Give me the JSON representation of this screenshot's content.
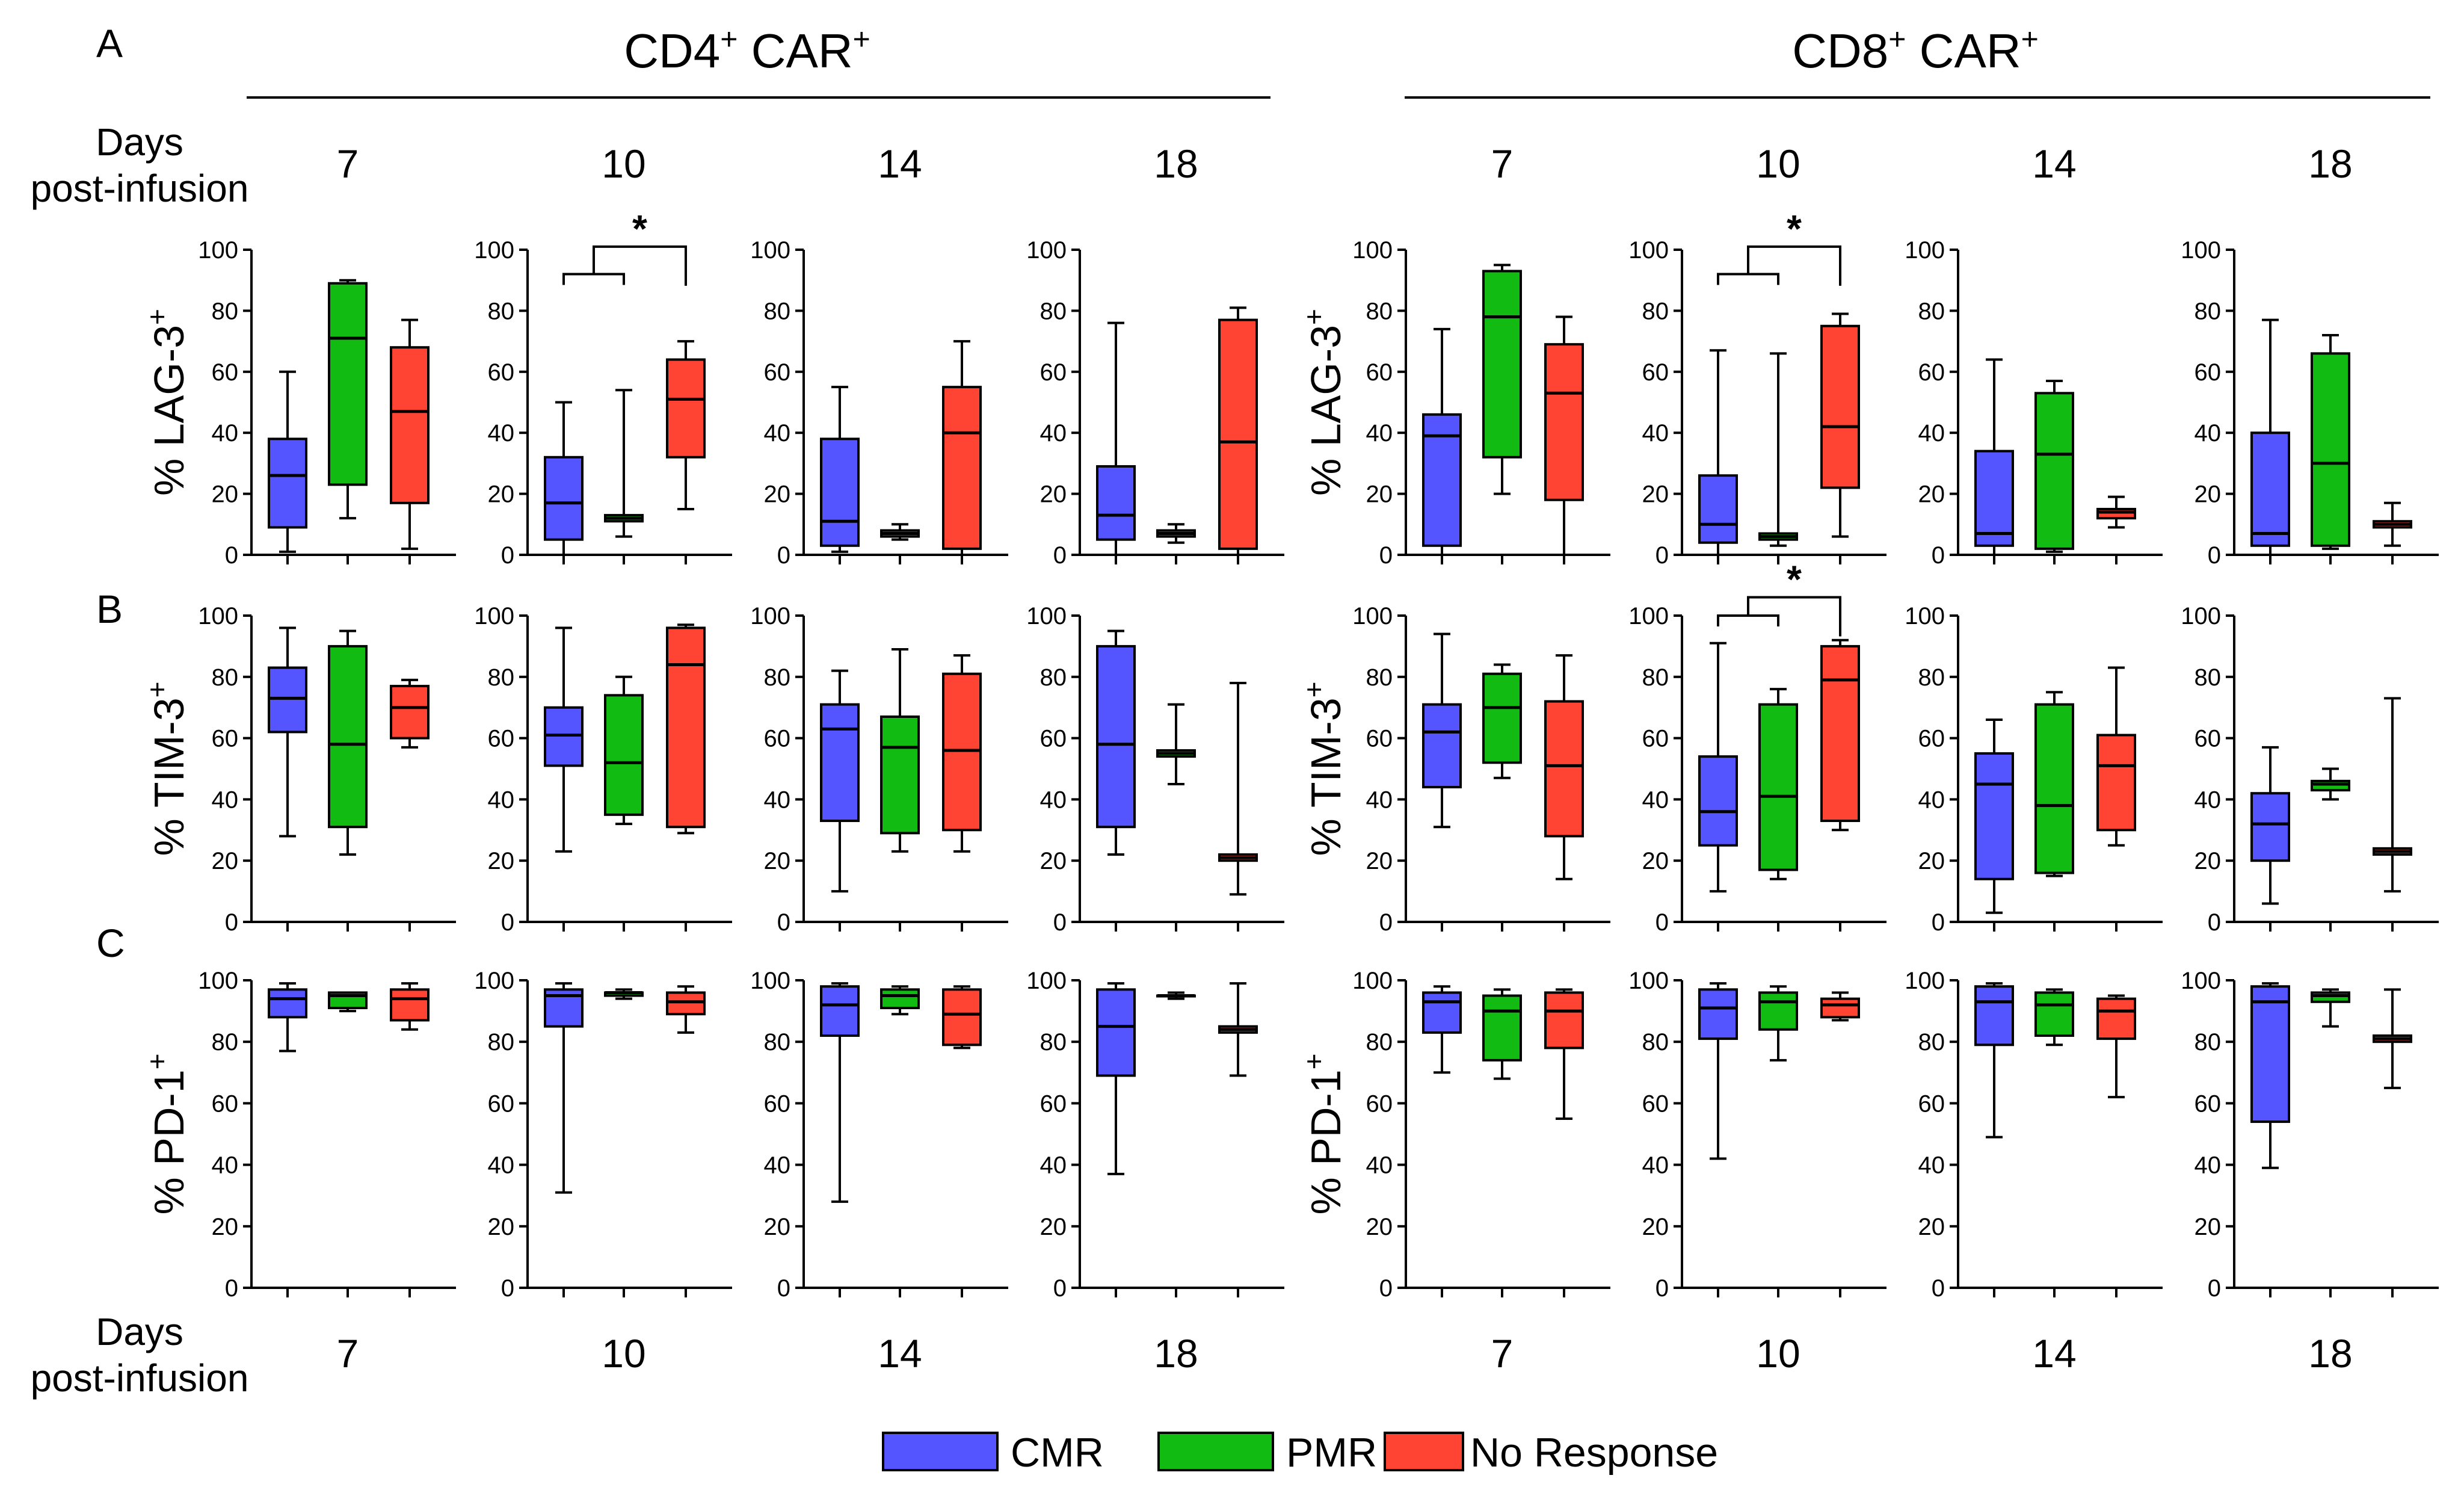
{
  "figure": {
    "panel_letters": [
      "A",
      "B",
      "C"
    ],
    "group_titles": [
      {
        "base": "CD4",
        "sup1": "+",
        "mid": " CAR",
        "sup2": "+"
      },
      {
        "base": "CD8",
        "sup1": "+",
        "mid": " CAR",
        "sup2": "+"
      }
    ],
    "days_label_line1": "Days",
    "days_label_line2": "post-infusion",
    "days": [
      "7",
      "10",
      "14",
      "18"
    ],
    "row_ylabels": [
      {
        "base": "% LAG-3",
        "sup": "+"
      },
      {
        "base": "% TIM-3",
        "sup": "+"
      },
      {
        "base": "% PD-1",
        "sup": "+"
      }
    ],
    "significance_marker": "*",
    "legend": [
      {
        "label": "CMR",
        "color": "#5555ff"
      },
      {
        "label": "PMR",
        "color": "#11bb11"
      },
      {
        "label": "No Response",
        "color": "#ff4433"
      }
    ]
  },
  "chart_data": {
    "type": "box",
    "ylim": [
      0,
      100
    ],
    "yticks": [
      0,
      20,
      40,
      60,
      80,
      100
    ],
    "groups": [
      "CMR",
      "PMR",
      "No Response"
    ],
    "colors": [
      "#5555ff",
      "#11bb11",
      "#ff4433"
    ],
    "panels": [
      {
        "row": "LAG-3",
        "cell": "CD4",
        "day": "7",
        "boxes": [
          [
            1,
            9,
            26,
            38,
            60
          ],
          [
            12,
            23,
            71,
            89,
            90
          ],
          [
            2,
            17,
            47,
            68,
            77
          ]
        ],
        "sig": null
      },
      {
        "row": "LAG-3",
        "cell": "CD4",
        "day": "10",
        "boxes": [
          [
            0,
            5,
            17,
            32,
            50
          ],
          [
            6,
            11,
            12,
            13,
            54
          ],
          [
            15,
            32,
            51,
            64,
            70
          ]
        ],
        "sig": "*"
      },
      {
        "row": "LAG-3",
        "cell": "CD4",
        "day": "14",
        "boxes": [
          [
            1,
            3,
            11,
            38,
            55
          ],
          [
            5,
            6,
            7,
            8,
            10
          ],
          [
            0,
            2,
            40,
            55,
            70
          ]
        ],
        "sig": null
      },
      {
        "row": "LAG-3",
        "cell": "CD4",
        "day": "18",
        "boxes": [
          [
            0,
            5,
            13,
            29,
            76
          ],
          [
            4,
            6,
            7,
            8,
            10
          ],
          [
            0,
            2,
            37,
            77,
            81
          ]
        ],
        "sig": null
      },
      {
        "row": "LAG-3",
        "cell": "CD8",
        "day": "7",
        "boxes": [
          [
            0,
            3,
            39,
            46,
            74
          ],
          [
            20,
            32,
            78,
            93,
            95
          ],
          [
            0,
            18,
            53,
            69,
            78
          ]
        ],
        "sig": null
      },
      {
        "row": "LAG-3",
        "cell": "CD8",
        "day": "10",
        "boxes": [
          [
            0,
            4,
            10,
            26,
            67
          ],
          [
            3,
            5,
            6,
            7,
            66
          ],
          [
            6,
            22,
            42,
            75,
            79
          ]
        ],
        "sig": "*"
      },
      {
        "row": "LAG-3",
        "cell": "CD8",
        "day": "14",
        "boxes": [
          [
            0,
            3,
            7,
            34,
            64
          ],
          [
            1,
            2,
            33,
            53,
            57
          ],
          [
            9,
            12,
            14,
            15,
            19
          ]
        ],
        "sig": null
      },
      {
        "row": "LAG-3",
        "cell": "CD8",
        "day": "18",
        "boxes": [
          [
            0,
            3,
            7,
            40,
            77
          ],
          [
            2,
            3,
            30,
            66,
            72
          ],
          [
            3,
            9,
            10,
            11,
            17
          ]
        ],
        "sig": null
      },
      {
        "row": "TIM-3",
        "cell": "CD4",
        "day": "7",
        "boxes": [
          [
            28,
            62,
            73,
            83,
            96
          ],
          [
            22,
            31,
            58,
            90,
            95
          ],
          [
            57,
            60,
            70,
            77,
            79
          ]
        ],
        "sig": null
      },
      {
        "row": "TIM-3",
        "cell": "CD4",
        "day": "10",
        "boxes": [
          [
            23,
            51,
            61,
            70,
            96
          ],
          [
            32,
            35,
            52,
            74,
            80
          ],
          [
            29,
            31,
            84,
            96,
            97
          ]
        ],
        "sig": null
      },
      {
        "row": "TIM-3",
        "cell": "CD4",
        "day": "14",
        "boxes": [
          [
            10,
            33,
            63,
            71,
            82
          ],
          [
            23,
            29,
            57,
            67,
            89
          ],
          [
            23,
            30,
            56,
            81,
            87
          ]
        ],
        "sig": null
      },
      {
        "row": "TIM-3",
        "cell": "CD4",
        "day": "18",
        "boxes": [
          [
            22,
            31,
            58,
            90,
            95
          ],
          [
            45,
            54,
            55,
            56,
            71
          ],
          [
            9,
            20,
            21,
            22,
            78
          ]
        ],
        "sig": null
      },
      {
        "row": "TIM-3",
        "cell": "CD8",
        "day": "7",
        "boxes": [
          [
            31,
            44,
            62,
            71,
            94
          ],
          [
            47,
            52,
            70,
            81,
            84
          ],
          [
            14,
            28,
            51,
            72,
            87
          ]
        ],
        "sig": null
      },
      {
        "row": "TIM-3",
        "cell": "CD8",
        "day": "10",
        "boxes": [
          [
            10,
            25,
            36,
            54,
            91
          ],
          [
            14,
            17,
            41,
            71,
            76
          ],
          [
            30,
            33,
            79,
            90,
            92
          ]
        ],
        "sig": "*"
      },
      {
        "row": "TIM-3",
        "cell": "CD8",
        "day": "14",
        "boxes": [
          [
            3,
            14,
            45,
            55,
            66
          ],
          [
            15,
            16,
            38,
            71,
            75
          ],
          [
            25,
            30,
            51,
            61,
            83
          ]
        ],
        "sig": null
      },
      {
        "row": "TIM-3",
        "cell": "CD8",
        "day": "18",
        "boxes": [
          [
            6,
            20,
            32,
            42,
            57
          ],
          [
            40,
            43,
            45,
            46,
            50
          ],
          [
            10,
            22,
            23,
            24,
            73
          ]
        ],
        "sig": null
      },
      {
        "row": "PD-1",
        "cell": "CD4",
        "day": "7",
        "boxes": [
          [
            77,
            88,
            94,
            97,
            99
          ],
          [
            90,
            91,
            95,
            96,
            96
          ],
          [
            84,
            87,
            94,
            97,
            99
          ]
        ],
        "sig": null
      },
      {
        "row": "PD-1",
        "cell": "CD4",
        "day": "10",
        "boxes": [
          [
            31,
            85,
            95,
            97,
            99
          ],
          [
            94,
            95,
            96,
            96,
            97
          ],
          [
            83,
            89,
            93,
            96,
            98
          ]
        ],
        "sig": null
      },
      {
        "row": "PD-1",
        "cell": "CD4",
        "day": "14",
        "boxes": [
          [
            28,
            82,
            92,
            98,
            99
          ],
          [
            89,
            91,
            95,
            97,
            98
          ],
          [
            78,
            79,
            89,
            97,
            98
          ]
        ],
        "sig": null
      },
      {
        "row": "PD-1",
        "cell": "CD4",
        "day": "18",
        "boxes": [
          [
            37,
            69,
            85,
            97,
            99
          ],
          [
            94,
            95,
            95,
            95,
            96
          ],
          [
            69,
            83,
            84,
            85,
            99
          ]
        ],
        "sig": null
      },
      {
        "row": "PD-1",
        "cell": "CD8",
        "day": "7",
        "boxes": [
          [
            70,
            83,
            93,
            96,
            98
          ],
          [
            68,
            74,
            90,
            95,
            97
          ],
          [
            55,
            78,
            90,
            96,
            97
          ]
        ],
        "sig": null
      },
      {
        "row": "PD-1",
        "cell": "CD8",
        "day": "10",
        "boxes": [
          [
            42,
            81,
            91,
            97,
            99
          ],
          [
            74,
            84,
            93,
            96,
            98
          ],
          [
            87,
            88,
            92,
            94,
            96
          ]
        ],
        "sig": null
      },
      {
        "row": "PD-1",
        "cell": "CD8",
        "day": "14",
        "boxes": [
          [
            49,
            79,
            93,
            98,
            99
          ],
          [
            79,
            82,
            92,
            96,
            97
          ],
          [
            62,
            81,
            90,
            94,
            95
          ]
        ],
        "sig": null
      },
      {
        "row": "PD-1",
        "cell": "CD8",
        "day": "18",
        "boxes": [
          [
            39,
            54,
            93,
            98,
            99
          ],
          [
            85,
            93,
            95,
            96,
            97
          ],
          [
            65,
            80,
            81,
            82,
            97
          ]
        ],
        "sig": null
      }
    ]
  }
}
